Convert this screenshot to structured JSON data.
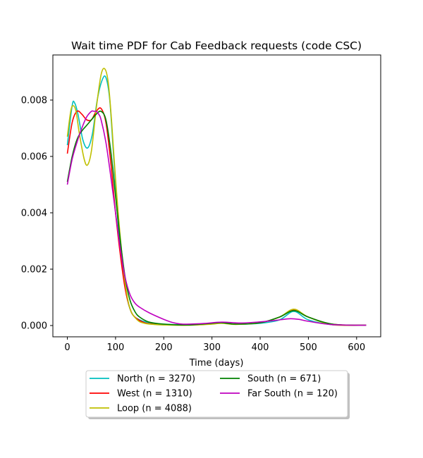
{
  "chart_data": {
    "type": "line",
    "title": "Wait time PDF for Cab Feedback  requests (code CSC)",
    "xlabel": "Time (days)",
    "ylabel": "",
    "xlim": [
      -30,
      650
    ],
    "ylim": [
      -0.0004,
      0.0096
    ],
    "xticks": [
      0,
      100,
      200,
      300,
      400,
      500,
      600
    ],
    "yticks": [
      0.0,
      0.002,
      0.004,
      0.006,
      0.008
    ],
    "ytick_labels": [
      "0.000",
      "0.002",
      "0.004",
      "0.006",
      "0.008"
    ],
    "grid": false,
    "legend_placement": "bottom-center-outside",
    "series": [
      {
        "name": "North (n = 3270)",
        "color": "#00bfbf",
        "x": [
          0,
          10,
          15,
          22,
          32,
          42,
          52,
          62,
          72,
          80,
          88,
          96,
          105,
          115,
          125,
          135,
          150,
          170,
          200,
          250,
          300,
          320,
          350,
          400,
          440,
          470,
          500,
          550,
          620
        ],
        "y": [
          0.0064,
          0.0078,
          0.0079,
          0.0075,
          0.0066,
          0.0063,
          0.0068,
          0.008,
          0.0087,
          0.0088,
          0.008,
          0.006,
          0.0037,
          0.002,
          0.0009,
          0.0004,
          0.0002,
          0.0001,
          5e-05,
          3e-05,
          8e-05,
          0.0001,
          5e-05,
          8e-05,
          0.0002,
          0.0005,
          0.0002,
          3e-05,
          1e-05
        ]
      },
      {
        "name": "West (n = 1310)",
        "color": "#ff0000",
        "x": [
          0,
          10,
          20,
          30,
          40,
          50,
          60,
          70,
          80,
          90,
          100,
          110,
          120,
          130,
          140,
          160,
          180,
          200,
          250,
          300,
          320,
          350,
          400,
          440,
          470,
          500,
          550,
          620
        ],
        "y": [
          0.0061,
          0.0072,
          0.0076,
          0.0075,
          0.0073,
          0.0073,
          0.0076,
          0.0077,
          0.0072,
          0.0058,
          0.004,
          0.0025,
          0.0013,
          0.0006,
          0.0003,
          0.0001,
          5e-05,
          3e-05,
          2e-05,
          7e-05,
          0.0001,
          5e-05,
          0.0001,
          0.0003,
          0.00055,
          0.0003,
          5e-05,
          1e-05
        ]
      },
      {
        "name": "Loop (n = 4088)",
        "color": "#bfbf00",
        "x": [
          0,
          7,
          12,
          18,
          25,
          35,
          42,
          50,
          60,
          70,
          78,
          85,
          92,
          100,
          110,
          120,
          130,
          145,
          160,
          180,
          200,
          250,
          300,
          320,
          350,
          400,
          440,
          470,
          500,
          550,
          620
        ],
        "y": [
          0.0067,
          0.0076,
          0.0078,
          0.0076,
          0.0068,
          0.0059,
          0.0057,
          0.0062,
          0.0077,
          0.0089,
          0.0091,
          0.0086,
          0.0072,
          0.0052,
          0.0031,
          0.0015,
          0.0006,
          0.0002,
          8e-05,
          4e-05,
          2e-05,
          1e-05,
          5e-05,
          8e-05,
          4e-05,
          0.0001,
          0.0003,
          0.00058,
          0.0003,
          3e-05,
          1e-05
        ]
      },
      {
        "name": "South (n = 671)",
        "color": "#008000",
        "x": [
          0,
          10,
          20,
          30,
          40,
          50,
          60,
          70,
          80,
          90,
          100,
          110,
          120,
          130,
          140,
          150,
          170,
          200,
          250,
          300,
          320,
          350,
          400,
          440,
          470,
          500,
          550,
          620
        ],
        "y": [
          0.0051,
          0.006,
          0.0066,
          0.0069,
          0.0071,
          0.0073,
          0.0075,
          0.0076,
          0.0073,
          0.0062,
          0.0046,
          0.003,
          0.0017,
          0.0009,
          0.0005,
          0.0003,
          0.00012,
          5e-05,
          2e-05,
          8e-05,
          0.0001,
          5e-05,
          0.0001,
          0.0003,
          0.00053,
          0.0003,
          5e-05,
          1e-05
        ]
      },
      {
        "name": "Far South (n = 120)",
        "color": "#bf00bf",
        "x": [
          0,
          10,
          20,
          30,
          40,
          50,
          55,
          60,
          65,
          70,
          80,
          90,
          100,
          110,
          120,
          130,
          140,
          150,
          170,
          200,
          220,
          240,
          280,
          320,
          360,
          400,
          430,
          460,
          480,
          500,
          550,
          620
        ],
        "y": [
          0.005,
          0.0059,
          0.0065,
          0.007,
          0.0074,
          0.0076,
          0.0076,
          0.0076,
          0.0075,
          0.0073,
          0.0065,
          0.0053,
          0.004,
          0.0027,
          0.0017,
          0.0011,
          0.0008,
          0.00065,
          0.00045,
          0.00022,
          0.0001,
          5e-05,
          7e-05,
          0.00012,
          9e-05,
          0.00013,
          0.00018,
          0.00024,
          0.00022,
          0.00015,
          3e-05,
          1e-05
        ]
      }
    ]
  }
}
